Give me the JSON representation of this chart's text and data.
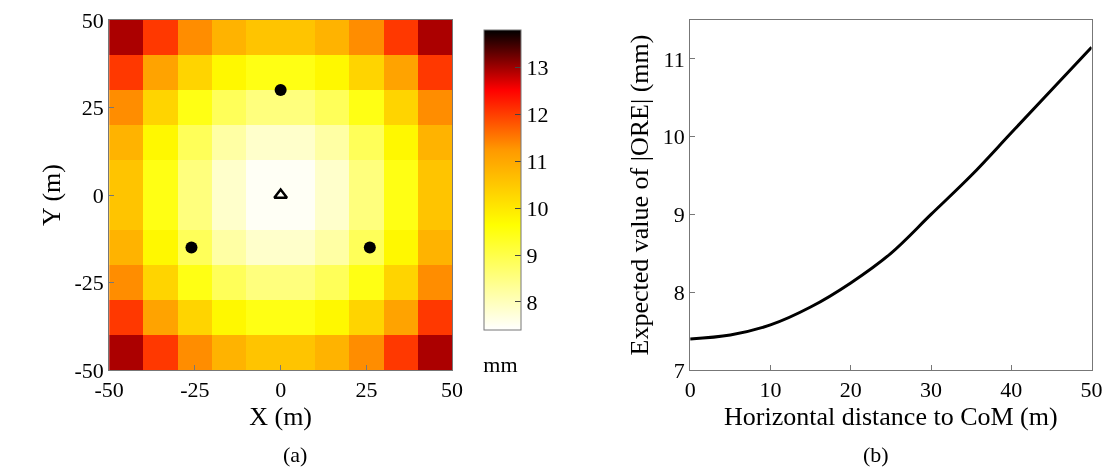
{
  "chart_data": [
    {
      "type": "heatmap",
      "xlabel": "X (m)",
      "ylabel": "Y (m)",
      "clabel": "mm",
      "annotations": [
        "(a)"
      ],
      "x": [
        -45,
        -35,
        -25,
        -15,
        -5,
        5,
        15,
        25,
        35,
        45
      ],
      "y": [
        45,
        35,
        25,
        15,
        5,
        -5,
        -15,
        -25,
        -35,
        -45
      ],
      "cells": [
        [
          12.94,
          12.05,
          11.34,
          10.84,
          10.57,
          10.57,
          10.84,
          11.34,
          12.05,
          12.94
        ],
        [
          12.05,
          11.09,
          10.31,
          9.75,
          9.46,
          9.46,
          9.75,
          10.31,
          11.09,
          12.05
        ],
        [
          11.34,
          10.31,
          9.46,
          8.86,
          8.54,
          8.54,
          8.86,
          9.46,
          10.31,
          11.34
        ],
        [
          10.84,
          9.75,
          8.86,
          8.2,
          7.86,
          7.86,
          8.2,
          8.86,
          9.75,
          10.84
        ],
        [
          10.57,
          9.46,
          8.54,
          7.86,
          7.49,
          7.49,
          7.86,
          8.54,
          9.46,
          10.57
        ],
        [
          10.57,
          9.46,
          8.54,
          7.86,
          7.49,
          7.49,
          7.86,
          8.54,
          9.46,
          10.57
        ],
        [
          10.84,
          9.75,
          8.86,
          8.2,
          7.86,
          7.86,
          8.2,
          8.86,
          9.75,
          10.84
        ],
        [
          11.34,
          10.31,
          9.46,
          8.86,
          8.54,
          8.54,
          8.86,
          9.46,
          10.31,
          11.34
        ],
        [
          12.05,
          11.09,
          10.31,
          9.75,
          9.46,
          9.46,
          9.75,
          10.31,
          11.09,
          12.05
        ],
        [
          12.94,
          12.05,
          11.34,
          10.84,
          10.57,
          10.57,
          10.84,
          11.34,
          12.05,
          12.94
        ]
      ],
      "clim": [
        7.4,
        13.8
      ],
      "cticks": [
        8,
        9,
        10,
        11,
        12,
        13
      ],
      "xlim": [
        -50,
        50
      ],
      "xticks": [
        -50,
        -25,
        0,
        25,
        50
      ],
      "ylim": [
        -50,
        50
      ],
      "yticks": [
        -50,
        -25,
        0,
        25,
        50
      ],
      "series": [
        {
          "type": "scatter",
          "color": "#000000",
          "marker": "circle",
          "x": [
            0,
            -26,
            26
          ],
          "values": [
            30,
            -15,
            -15
          ]
        },
        {
          "type": "scatter",
          "color": "#000000",
          "marker": "triangle",
          "x": [
            0
          ],
          "values": [
            0
          ]
        }
      ]
    },
    {
      "type": "line",
      "xlabel": "Horizontal distance to CoM (m)",
      "ylabel": "Expected value of |ORE| (mm)",
      "annotations": [
        "(b)"
      ],
      "x": [
        0,
        5,
        10,
        15,
        20,
        25,
        30,
        35,
        40,
        45,
        50
      ],
      "series": [
        {
          "color": "#000000",
          "values": [
            7.4,
            7.45,
            7.58,
            7.81,
            8.12,
            8.5,
            9.0,
            9.5,
            10.05,
            10.6,
            11.15
          ]
        }
      ],
      "xlim": [
        0,
        50
      ],
      "xticks": [
        0,
        10,
        20,
        30,
        40,
        50
      ],
      "ylim": [
        7,
        11.5
      ],
      "yticks": [
        7,
        8,
        9,
        10,
        11
      ],
      "line_style": "solid"
    }
  ]
}
